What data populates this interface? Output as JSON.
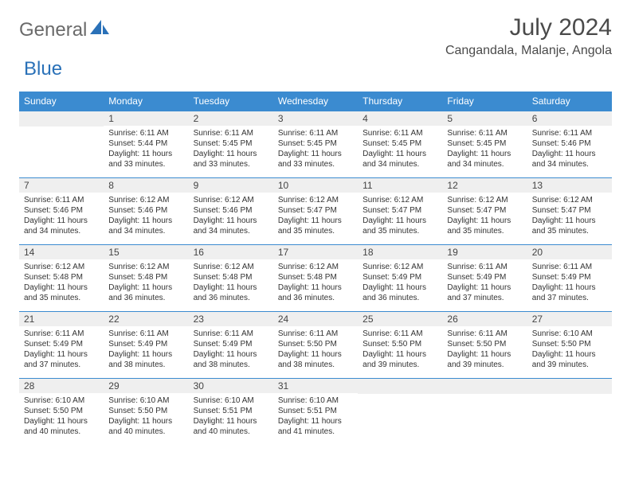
{
  "logo": {
    "part1": "General",
    "part2": "Blue"
  },
  "title": "July 2024",
  "location": "Cangandala, Malanje, Angola",
  "colors": {
    "header_bg": "#3b8bd0",
    "header_text": "#ffffff",
    "band_bg": "#efefef",
    "band_border": "#3b8bd0",
    "body_text": "#333333",
    "logo_gray": "#6a6a6a",
    "logo_blue": "#2a71b8"
  },
  "typography": {
    "title_fontsize": 30,
    "location_fontsize": 16,
    "dow_fontsize": 12,
    "daynum_fontsize": 12,
    "body_fontsize": 10
  },
  "day_names": [
    "Sunday",
    "Monday",
    "Tuesday",
    "Wednesday",
    "Thursday",
    "Friday",
    "Saturday"
  ],
  "weeks": [
    [
      {
        "num": "",
        "lines": []
      },
      {
        "num": "1",
        "lines": [
          "Sunrise: 6:11 AM",
          "Sunset: 5:44 PM",
          "Daylight: 11 hours",
          "and 33 minutes."
        ]
      },
      {
        "num": "2",
        "lines": [
          "Sunrise: 6:11 AM",
          "Sunset: 5:45 PM",
          "Daylight: 11 hours",
          "and 33 minutes."
        ]
      },
      {
        "num": "3",
        "lines": [
          "Sunrise: 6:11 AM",
          "Sunset: 5:45 PM",
          "Daylight: 11 hours",
          "and 33 minutes."
        ]
      },
      {
        "num": "4",
        "lines": [
          "Sunrise: 6:11 AM",
          "Sunset: 5:45 PM",
          "Daylight: 11 hours",
          "and 34 minutes."
        ]
      },
      {
        "num": "5",
        "lines": [
          "Sunrise: 6:11 AM",
          "Sunset: 5:45 PM",
          "Daylight: 11 hours",
          "and 34 minutes."
        ]
      },
      {
        "num": "6",
        "lines": [
          "Sunrise: 6:11 AM",
          "Sunset: 5:46 PM",
          "Daylight: 11 hours",
          "and 34 minutes."
        ]
      }
    ],
    [
      {
        "num": "7",
        "lines": [
          "Sunrise: 6:11 AM",
          "Sunset: 5:46 PM",
          "Daylight: 11 hours",
          "and 34 minutes."
        ]
      },
      {
        "num": "8",
        "lines": [
          "Sunrise: 6:12 AM",
          "Sunset: 5:46 PM",
          "Daylight: 11 hours",
          "and 34 minutes."
        ]
      },
      {
        "num": "9",
        "lines": [
          "Sunrise: 6:12 AM",
          "Sunset: 5:46 PM",
          "Daylight: 11 hours",
          "and 34 minutes."
        ]
      },
      {
        "num": "10",
        "lines": [
          "Sunrise: 6:12 AM",
          "Sunset: 5:47 PM",
          "Daylight: 11 hours",
          "and 35 minutes."
        ]
      },
      {
        "num": "11",
        "lines": [
          "Sunrise: 6:12 AM",
          "Sunset: 5:47 PM",
          "Daylight: 11 hours",
          "and 35 minutes."
        ]
      },
      {
        "num": "12",
        "lines": [
          "Sunrise: 6:12 AM",
          "Sunset: 5:47 PM",
          "Daylight: 11 hours",
          "and 35 minutes."
        ]
      },
      {
        "num": "13",
        "lines": [
          "Sunrise: 6:12 AM",
          "Sunset: 5:47 PM",
          "Daylight: 11 hours",
          "and 35 minutes."
        ]
      }
    ],
    [
      {
        "num": "14",
        "lines": [
          "Sunrise: 6:12 AM",
          "Sunset: 5:48 PM",
          "Daylight: 11 hours",
          "and 35 minutes."
        ]
      },
      {
        "num": "15",
        "lines": [
          "Sunrise: 6:12 AM",
          "Sunset: 5:48 PM",
          "Daylight: 11 hours",
          "and 36 minutes."
        ]
      },
      {
        "num": "16",
        "lines": [
          "Sunrise: 6:12 AM",
          "Sunset: 5:48 PM",
          "Daylight: 11 hours",
          "and 36 minutes."
        ]
      },
      {
        "num": "17",
        "lines": [
          "Sunrise: 6:12 AM",
          "Sunset: 5:48 PM",
          "Daylight: 11 hours",
          "and 36 minutes."
        ]
      },
      {
        "num": "18",
        "lines": [
          "Sunrise: 6:12 AM",
          "Sunset: 5:49 PM",
          "Daylight: 11 hours",
          "and 36 minutes."
        ]
      },
      {
        "num": "19",
        "lines": [
          "Sunrise: 6:11 AM",
          "Sunset: 5:49 PM",
          "Daylight: 11 hours",
          "and 37 minutes."
        ]
      },
      {
        "num": "20",
        "lines": [
          "Sunrise: 6:11 AM",
          "Sunset: 5:49 PM",
          "Daylight: 11 hours",
          "and 37 minutes."
        ]
      }
    ],
    [
      {
        "num": "21",
        "lines": [
          "Sunrise: 6:11 AM",
          "Sunset: 5:49 PM",
          "Daylight: 11 hours",
          "and 37 minutes."
        ]
      },
      {
        "num": "22",
        "lines": [
          "Sunrise: 6:11 AM",
          "Sunset: 5:49 PM",
          "Daylight: 11 hours",
          "and 38 minutes."
        ]
      },
      {
        "num": "23",
        "lines": [
          "Sunrise: 6:11 AM",
          "Sunset: 5:49 PM",
          "Daylight: 11 hours",
          "and 38 minutes."
        ]
      },
      {
        "num": "24",
        "lines": [
          "Sunrise: 6:11 AM",
          "Sunset: 5:50 PM",
          "Daylight: 11 hours",
          "and 38 minutes."
        ]
      },
      {
        "num": "25",
        "lines": [
          "Sunrise: 6:11 AM",
          "Sunset: 5:50 PM",
          "Daylight: 11 hours",
          "and 39 minutes."
        ]
      },
      {
        "num": "26",
        "lines": [
          "Sunrise: 6:11 AM",
          "Sunset: 5:50 PM",
          "Daylight: 11 hours",
          "and 39 minutes."
        ]
      },
      {
        "num": "27",
        "lines": [
          "Sunrise: 6:10 AM",
          "Sunset: 5:50 PM",
          "Daylight: 11 hours",
          "and 39 minutes."
        ]
      }
    ],
    [
      {
        "num": "28",
        "lines": [
          "Sunrise: 6:10 AM",
          "Sunset: 5:50 PM",
          "Daylight: 11 hours",
          "and 40 minutes."
        ]
      },
      {
        "num": "29",
        "lines": [
          "Sunrise: 6:10 AM",
          "Sunset: 5:50 PM",
          "Daylight: 11 hours",
          "and 40 minutes."
        ]
      },
      {
        "num": "30",
        "lines": [
          "Sunrise: 6:10 AM",
          "Sunset: 5:51 PM",
          "Daylight: 11 hours",
          "and 40 minutes."
        ]
      },
      {
        "num": "31",
        "lines": [
          "Sunrise: 6:10 AM",
          "Sunset: 5:51 PM",
          "Daylight: 11 hours",
          "and 41 minutes."
        ]
      },
      {
        "num": "",
        "lines": []
      },
      {
        "num": "",
        "lines": []
      },
      {
        "num": "",
        "lines": []
      }
    ]
  ]
}
